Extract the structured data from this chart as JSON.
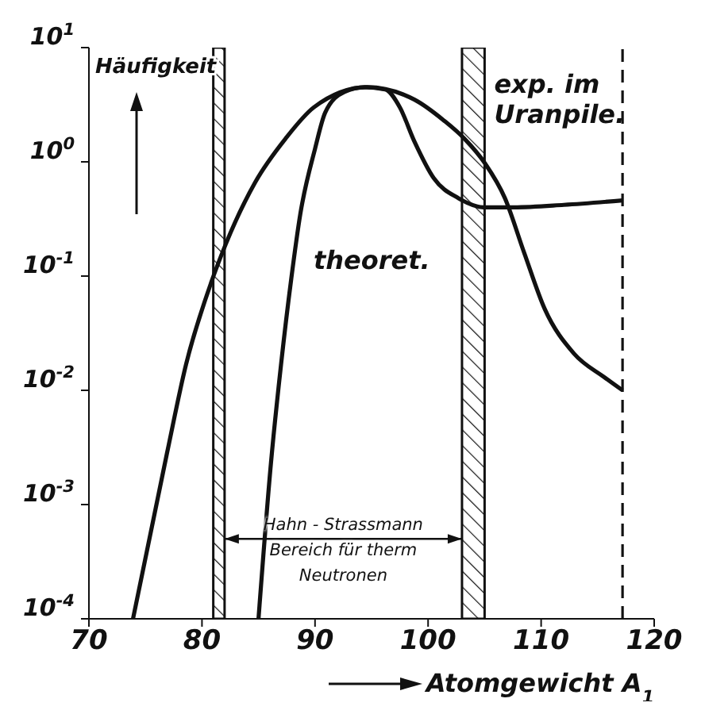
{
  "chart_data": {
    "type": "line",
    "xlabel": "Atomgewicht A$_{1}$",
    "ylabel": "Häufigkeit",
    "log": "y",
    "marker": "none",
    "line_style": "solid",
    "xlim": [
      70,
      120
    ],
    "xticks": [
      70,
      80,
      90,
      100,
      110,
      120
    ],
    "ylim": [
      0.0001,
      10
    ],
    "yticks": [
      {
        "value": 10,
        "label": "10$^{1}$"
      },
      {
        "value": 1,
        "label": "10$^{0}$"
      },
      {
        "value": 0.1,
        "label": "10$^{-1}$"
      },
      {
        "value": 0.01,
        "label": "10$^{-2}$"
      },
      {
        "value": 0.001,
        "label": "10$^{-3}$"
      },
      {
        "value": 0.0001,
        "label": "10$^{-4}$"
      }
    ],
    "series": [
      {
        "name": "exp. im Uranpile.",
        "color": "#111111",
        "x": [
          73.9,
          76.9,
          78.6,
          80.8,
          82.1,
          84.7,
          87.4,
          89.9,
          94.6,
          98.8,
          101.4,
          103.2,
          105,
          106.8,
          108.5,
          110.3,
          112.9,
          115.6,
          117.2
        ],
        "values": [
          0.0001,
          0.0028,
          0.017,
          0.087,
          0.19,
          0.66,
          1.6,
          3.0,
          4.5,
          3.5,
          2.3,
          1.6,
          0.98,
          0.48,
          0.16,
          0.052,
          0.021,
          0.013,
          0.01
        ]
      },
      {
        "name": "theoret.",
        "color": "#111111",
        "x": [
          85.0,
          86.1,
          87.0,
          87.9,
          88.7,
          90,
          90.9,
          92.6,
          94.4,
          96.2,
          97.5,
          98.8,
          100.5,
          102.7,
          104.9,
          107.6,
          112,
          117.2
        ],
        "values": [
          0.0001,
          0.0023,
          0.017,
          0.095,
          0.35,
          1.3,
          2.7,
          4.1,
          4.5,
          4.3,
          3.0,
          1.5,
          0.72,
          0.48,
          0.4,
          0.4,
          0.42,
          0.46
        ]
      }
    ],
    "bands": [
      {
        "axis": "x",
        "from": 81,
        "to": 82,
        "color": "#111111"
      },
      {
        "axis": "x",
        "from": 103,
        "to": 105,
        "color": "#111111"
      }
    ],
    "ref_lines": [
      {
        "axis": "x",
        "value": 117.2,
        "line_style": "dashed",
        "color": "#111111"
      }
    ],
    "annotations": [
      "Hahn - Strassmann Bereich für therm Neutronen"
    ]
  }
}
